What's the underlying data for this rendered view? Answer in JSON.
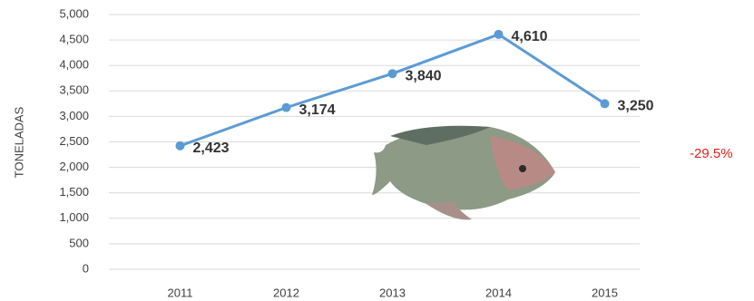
{
  "chart_data": {
    "type": "line",
    "y_label": "TONELADAS",
    "categories": [
      "2011",
      "2012",
      "2013",
      "2014",
      "2015"
    ],
    "values": [
      2423,
      3174,
      3840,
      4610,
      3250
    ],
    "value_labels": [
      "2,423",
      "3,174",
      "3,840",
      "4,610",
      "3,250"
    ],
    "color": "#5b9bd5",
    "ylim": [
      0,
      5000
    ],
    "yticks": [
      0,
      500,
      {
        "value": 1000,
        "label": "1,000"
      },
      {
        "value": 1500,
        "label": "1,500"
      },
      {
        "value": 2000,
        "label": "2,000"
      },
      {
        "value": 2500,
        "label": "2,500"
      },
      {
        "value": 3000,
        "label": "3,000"
      },
      {
        "value": 3500,
        "label": "3,500"
      },
      {
        "value": 4000,
        "label": "4,000"
      },
      {
        "value": 4500,
        "label": "4,500"
      },
      {
        "value": 5000,
        "label": "5,000"
      }
    ],
    "grid": true,
    "annotation": "-29.5%"
  }
}
